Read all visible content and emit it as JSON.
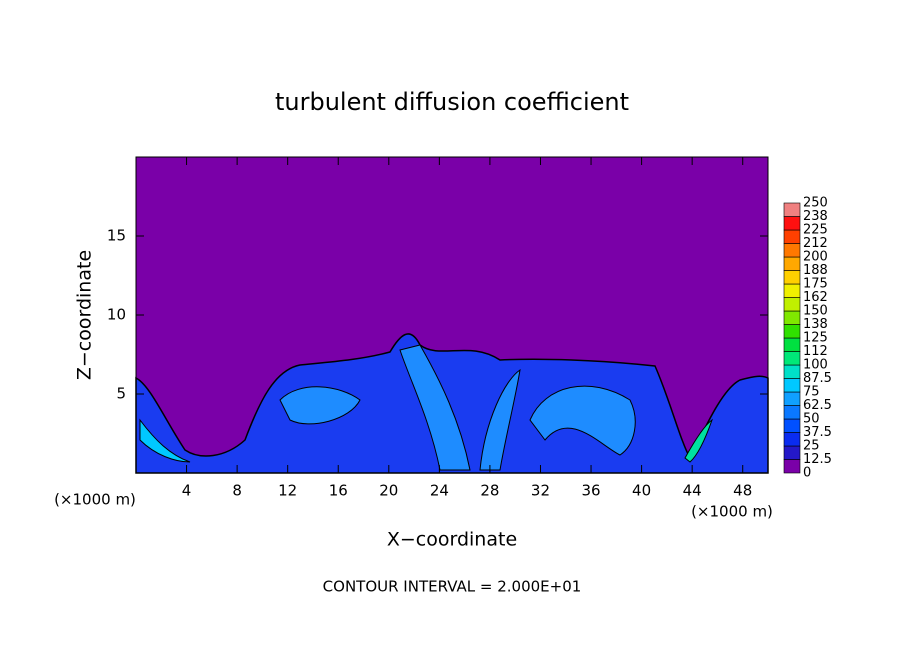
{
  "chart_data": {
    "type": "contour",
    "title": "turbulent diffusion coefficient",
    "xlabel": "X−coordinate",
    "ylabel": "Z−coordinate",
    "x_unit": "(×1000 m)",
    "y_unit": "(×1000 m)",
    "footer": "CONTOUR INTERVAL = 2.000E+01",
    "xlim": [
      0,
      50
    ],
    "ylim": [
      0,
      20
    ],
    "xticks": [
      4,
      8,
      12,
      16,
      20,
      24,
      28,
      32,
      36,
      40,
      44,
      48
    ],
    "yticks": [
      5,
      10,
      15
    ],
    "colorbar": {
      "levels": [
        0,
        12.5,
        25,
        37.5,
        50,
        62.5,
        75,
        87.5,
        100,
        112,
        125,
        138,
        150,
        162,
        175,
        188,
        200,
        212,
        225,
        238,
        250
      ],
      "colors": [
        "#7a00a8",
        "#2418c8",
        "#0a2cf0",
        "#0050ff",
        "#0a78ff",
        "#10a0ff",
        "#00c8ff",
        "#00e0c8",
        "#00e878",
        "#00e040",
        "#30e000",
        "#80e800",
        "#c0f000",
        "#f0f000",
        "#ffd000",
        "#ffa800",
        "#ff7800",
        "#ff4000",
        "#ff1010",
        "#f08080"
      ]
    }
  }
}
